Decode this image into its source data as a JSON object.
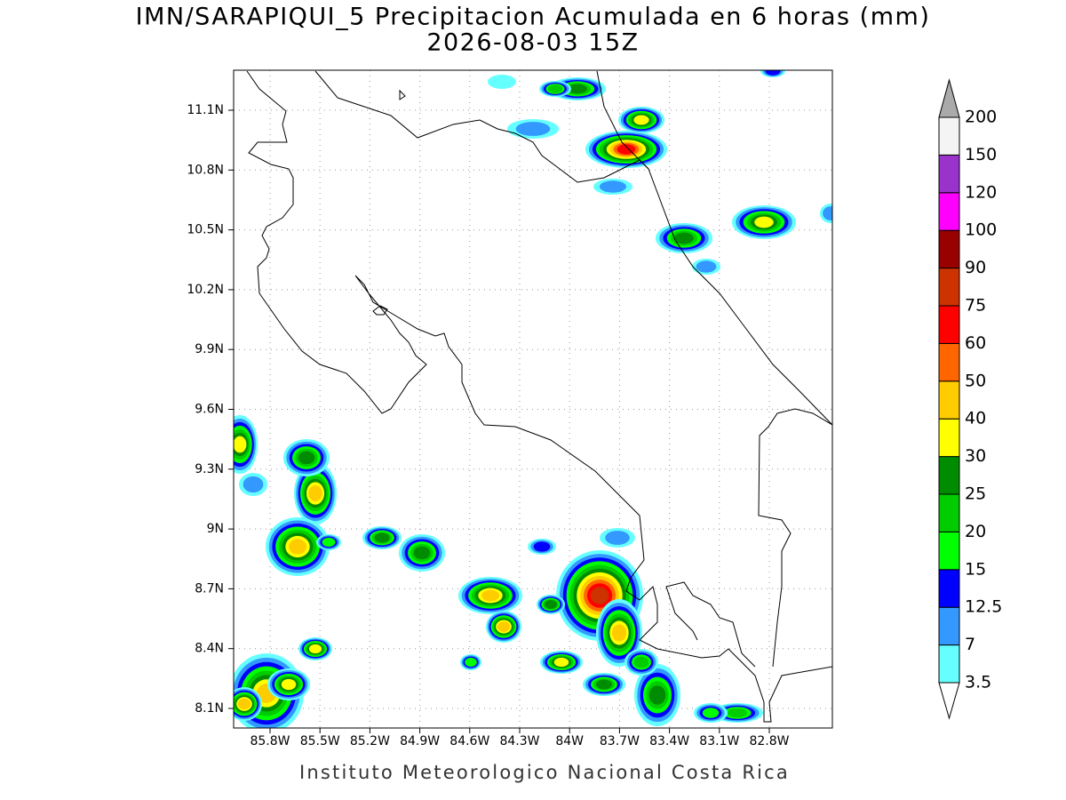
{
  "title": "IMN/SARAPIQUI_5 Precipitacion Acumulada en 6 horas (mm)",
  "subtitle": "2026-08-03 15Z",
  "map": {
    "lon_ticks": [
      "85.8W",
      "85.5W",
      "85.2W",
      "84.9W",
      "84.6W",
      "84.3W",
      "84W",
      "83.7W",
      "83.4W",
      "83.1W",
      "82.8W"
    ],
    "lat_ticks": [
      "11.1N",
      "10.8N",
      "10.5N",
      "10.2N",
      "9.9N",
      "9.6N",
      "9.3N",
      "9N",
      "8.7N",
      "8.4N",
      "8.1N"
    ]
  },
  "colorbar": {
    "levels": [
      3.5,
      7,
      12.5,
      15,
      20,
      25,
      30,
      40,
      50,
      60,
      75,
      90,
      100,
      120,
      150,
      200
    ],
    "colors": [
      "#66ffff",
      "#3399ff",
      "#0000ff",
      "#00ff00",
      "#00cc00",
      "#008c00",
      "#ffff00",
      "#ffcc00",
      "#ff6600",
      "#ff0000",
      "#cc3300",
      "#990000",
      "#ff00ff",
      "#9933cc",
      "#f4f4f4"
    ],
    "under_color": "#ffffff",
    "over_color": "#aaaaaa"
  },
  "footer": "Instituto Meteorologico Nacional Costa Rica"
}
